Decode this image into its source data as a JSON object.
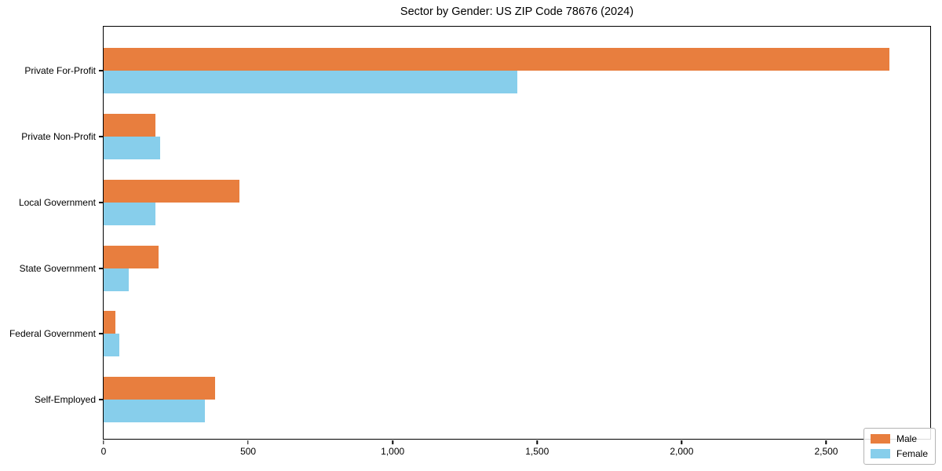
{
  "chart_data": {
    "type": "bar",
    "orientation": "horizontal",
    "title": "Sector by Gender: US ZIP Code 78676 (2024)",
    "xlabel": "",
    "ylabel": "",
    "categories": [
      "Private For-Profit",
      "Private Non-Profit",
      "Local Government",
      "State Government",
      "Federal Government",
      "Self-Employed"
    ],
    "series": [
      {
        "name": "Male",
        "color": "#E87E3E",
        "values": [
          2720,
          180,
          470,
          190,
          42,
          385
        ]
      },
      {
        "name": "Female",
        "color": "#87CEEB",
        "values": [
          1430,
          195,
          180,
          88,
          55,
          350
        ]
      }
    ],
    "xlim": [
      0,
      2860
    ],
    "xticks": [
      0,
      500,
      1000,
      1500,
      2000,
      2500
    ],
    "xtick_labels": [
      "0",
      "500",
      "1,000",
      "1,500",
      "2,000",
      "2,500"
    ],
    "grid": false,
    "legend": {
      "position": "lower right",
      "entries": [
        "Male",
        "Female"
      ]
    }
  }
}
